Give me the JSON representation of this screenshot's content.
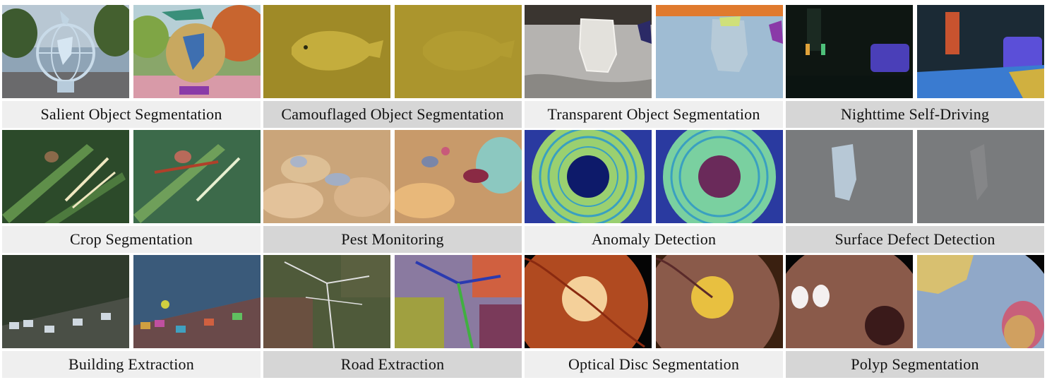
{
  "tasks": [
    {
      "label": "Salient Object Segmentation",
      "caption_bg": "#efefef"
    },
    {
      "label": "Camouflaged Object Segmentation",
      "caption_bg": "#d6d6d6"
    },
    {
      "label": "Transparent Object Segmentation",
      "caption_bg": "#efefef"
    },
    {
      "label": "Nighttime Self-Driving",
      "caption_bg": "#d6d6d6"
    },
    {
      "label": "Crop Segmentation",
      "caption_bg": "#efefef"
    },
    {
      "label": "Pest Monitoring",
      "caption_bg": "#d6d6d6"
    },
    {
      "label": "Anomaly Detection",
      "caption_bg": "#efefef"
    },
    {
      "label": "Surface Defect Detection",
      "caption_bg": "#d6d6d6"
    },
    {
      "label": "Building Extraction",
      "caption_bg": "#efefef"
    },
    {
      "label": "Road Extraction",
      "caption_bg": "#d6d6d6"
    },
    {
      "label": "Optical Disc Segmentation",
      "caption_bg": "#efefef"
    },
    {
      "label": "Polyp Segmentation",
      "caption_bg": "#d6d6d6"
    }
  ]
}
